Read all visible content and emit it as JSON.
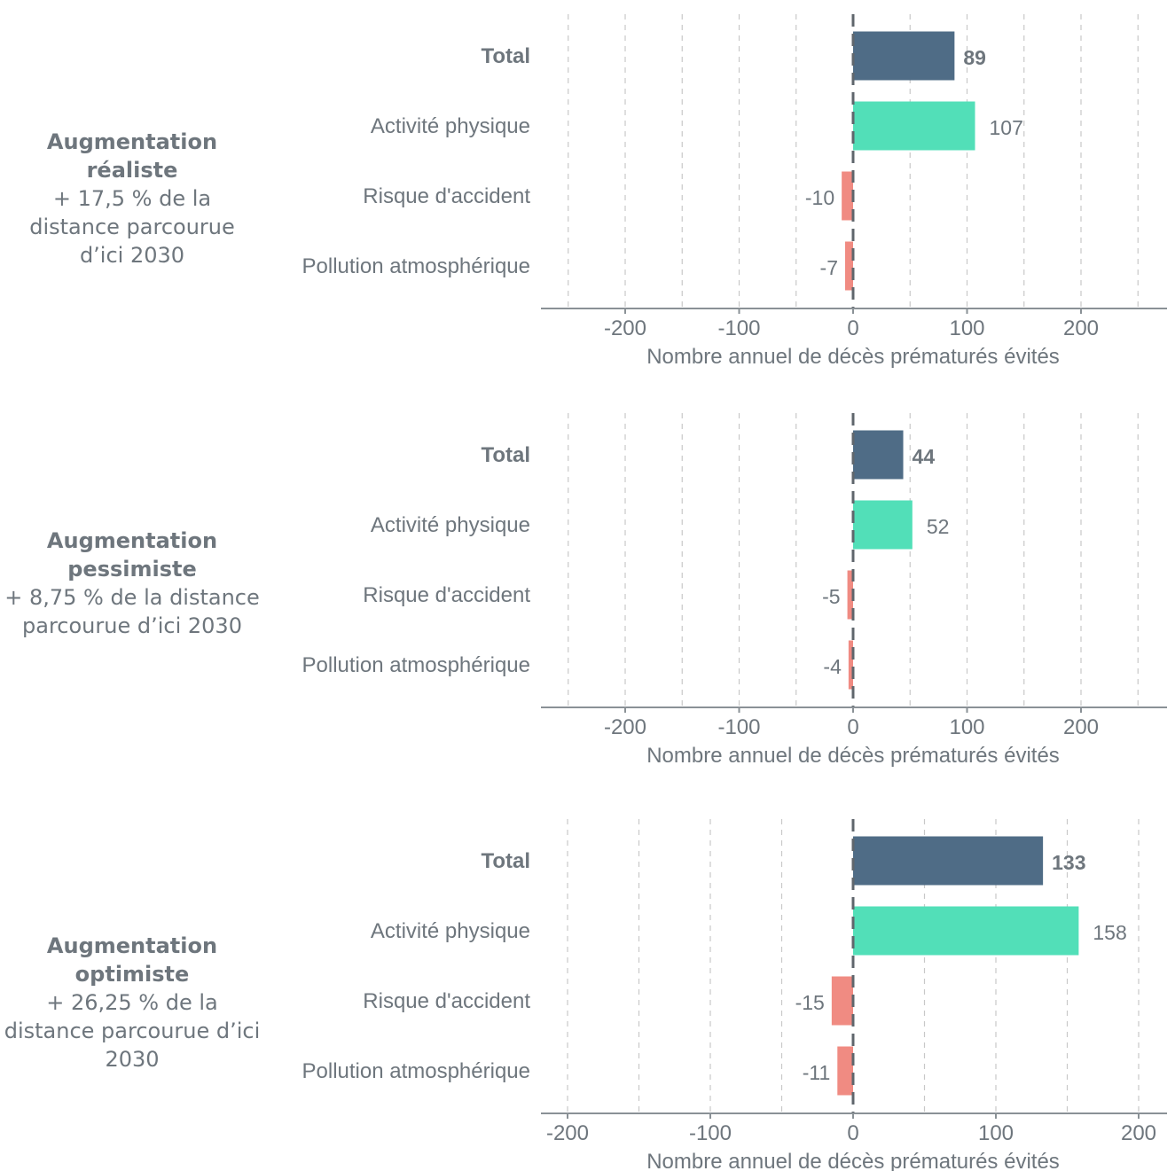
{
  "colors": {
    "total": "#4f6c86",
    "positive": "#52dfb8",
    "negative": "#f08b82",
    "text": "#6e767d",
    "grid": "#c8c8c8",
    "axis": "#8a9196",
    "zero_line": "#5f666c"
  },
  "chart_data": [
    {
      "type": "bar",
      "orientation": "horizontal",
      "scenario_title": "Augmentation réaliste",
      "scenario_desc": "+ 17,5 % de la distance parcourue d’ici 2030",
      "categories": [
        "Total",
        "Activité physique",
        "Risque d'accident",
        "Pollution atmosphérique"
      ],
      "values": [
        89,
        107,
        -10,
        -7
      ],
      "xlabel": "Nombre annuel de décès prématurés évités",
      "xticks": [
        -200,
        -100,
        0,
        100,
        200
      ],
      "xlim": [
        -275,
        275
      ],
      "grid": true
    },
    {
      "type": "bar",
      "orientation": "horizontal",
      "scenario_title": "Augmentation pessimiste",
      "scenario_desc": "+ 8,75 % de la distance parcourue d’ici 2030",
      "categories": [
        "Total",
        "Activité physique",
        "Risque d'accident",
        "Pollution atmosphérique"
      ],
      "values": [
        44,
        52,
        -5,
        -4
      ],
      "xlabel": "Nombre annuel de décès prématurés évités",
      "xticks": [
        -200,
        -100,
        0,
        100,
        200
      ],
      "xlim": [
        -275,
        275
      ],
      "grid": true
    },
    {
      "type": "bar",
      "orientation": "horizontal",
      "scenario_title": "Augmentation optimiste",
      "scenario_desc": "+ 26,25 % de la distance parcourue d’ici 2030",
      "categories": [
        "Total",
        "Activité physique",
        "Risque d'accident",
        "Pollution atmosphérique"
      ],
      "values": [
        133,
        158,
        -15,
        -11
      ],
      "xlabel": "Nombre annuel de décès prématurés évités",
      "xticks": [
        -200,
        -100,
        0,
        100,
        200
      ],
      "xlim": [
        -220,
        200
      ],
      "grid": true
    }
  ]
}
